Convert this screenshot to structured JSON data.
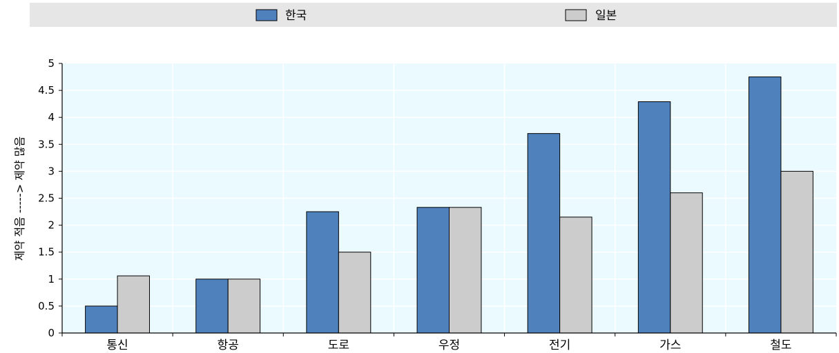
{
  "colors": {
    "legend_bg": "#e6e6e6",
    "plot_bg": "#ebfaff",
    "grid": "#ffffff",
    "axis": "#000000",
    "series_korea": "#4f81bd",
    "series_japan": "#cccccc",
    "bar_stroke": "#000000"
  },
  "chart_data": {
    "type": "bar",
    "title": "",
    "xlabel": "",
    "ylabel": "제약 적음 -----> 제약 많음",
    "ylim": [
      0,
      5
    ],
    "yticks": [
      "0",
      "0.5",
      "1",
      "1.5",
      "2",
      "2.5",
      "3",
      "3.5",
      "4",
      "4.5",
      "5"
    ],
    "grid": true,
    "legend_position": "top",
    "categories": [
      "통신",
      "항공",
      "도로",
      "우정",
      "전기",
      "가스",
      "철도"
    ],
    "series": [
      {
        "name": "한국",
        "color": "#4f81bd",
        "values": [
          0.5,
          1.0,
          2.25,
          2.33,
          3.7,
          4.29,
          4.75
        ]
      },
      {
        "name": "일본",
        "color": "#cccccc",
        "values": [
          1.06,
          1.0,
          1.5,
          2.33,
          2.15,
          2.6,
          3.0
        ]
      }
    ]
  }
}
